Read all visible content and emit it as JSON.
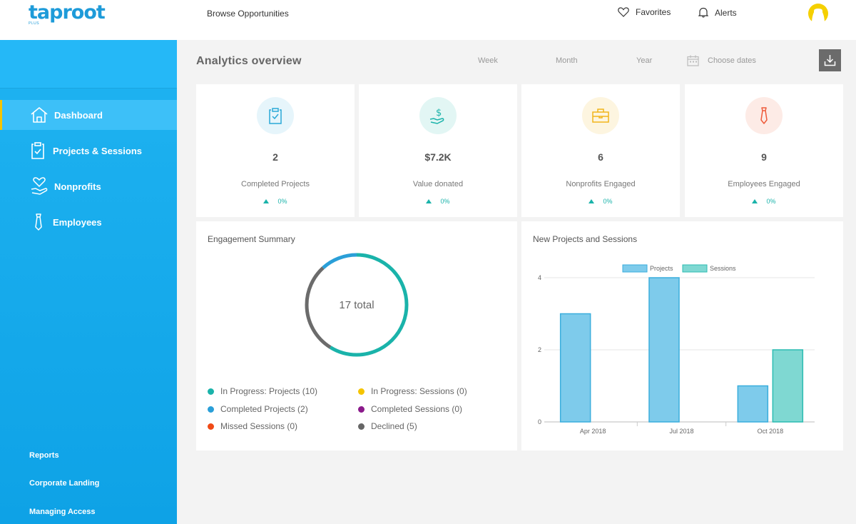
{
  "header": {
    "logo": "taproot",
    "logo_sub": "PLUS",
    "browse": "Browse Opportunities",
    "favorites": "Favorites",
    "alerts": "Alerts"
  },
  "sidebar": {
    "items": [
      {
        "label": "Dashboard",
        "icon": "home-icon",
        "active": true
      },
      {
        "label": "Projects & Sessions",
        "icon": "clipboard-icon"
      },
      {
        "label": "Nonprofits",
        "icon": "heart-hand-icon"
      },
      {
        "label": "Employees",
        "icon": "tie-icon"
      }
    ],
    "links": [
      "Reports",
      "Corporate Landing",
      "Managing Access"
    ]
  },
  "main": {
    "title": "Analytics overview",
    "ranges": [
      "Week",
      "Month",
      "Year"
    ],
    "choose_dates": "Choose dates"
  },
  "stats": [
    {
      "value": "2",
      "label": "Completed Projects",
      "change": "0%",
      "icon": "clipboard-check-icon",
      "color": "#2aa9d8",
      "bg": "#e6f5fb"
    },
    {
      "value": "$7.2K",
      "label": "Value donated",
      "change": "0%",
      "icon": "dollar-hand-icon",
      "color": "#1ab3aa",
      "bg": "#e2f6f4"
    },
    {
      "value": "6",
      "label": "Nonprofits Engaged",
      "change": "0%",
      "icon": "briefcase-icon",
      "color": "#f2b51b",
      "bg": "#fdf5e0"
    },
    {
      "value": "9",
      "label": "Employees Engaged",
      "change": "0%",
      "icon": "tie-icon",
      "color": "#ee5a3a",
      "bg": "#fdebe6"
    }
  ],
  "engagement": {
    "title": "Engagement Summary",
    "total": "17 total",
    "legend": [
      {
        "label": "In Progress: Projects (10)",
        "color": "#1ab3aa"
      },
      {
        "label": "In Progress: Sessions (0)",
        "color": "#f5c400"
      },
      {
        "label": "Completed Projects (2)",
        "color": "#2a9fd8"
      },
      {
        "label": "Completed Sessions (0)",
        "color": "#8b1a8b"
      },
      {
        "label": "Missed Sessions (0)",
        "color": "#f04a16"
      },
      {
        "label": "Declined (5)",
        "color": "#666666"
      }
    ]
  },
  "chart_data": {
    "type": "bar",
    "title": "New Projects and Sessions",
    "categories": [
      "Apr 2018",
      "Jul 2018",
      "Oct 2018"
    ],
    "series": [
      {
        "name": "Projects",
        "values": [
          3,
          4,
          1
        ],
        "color": "#7ecbeb",
        "stroke": "#3aaedd"
      },
      {
        "name": "Sessions",
        "values": [
          0,
          0,
          2
        ],
        "color": "#7fd8d2",
        "stroke": "#2cbcb2"
      }
    ],
    "yticks": [
      "0",
      "2",
      "4"
    ],
    "ylim": [
      0,
      4
    ],
    "grid": true,
    "legend": "top"
  }
}
